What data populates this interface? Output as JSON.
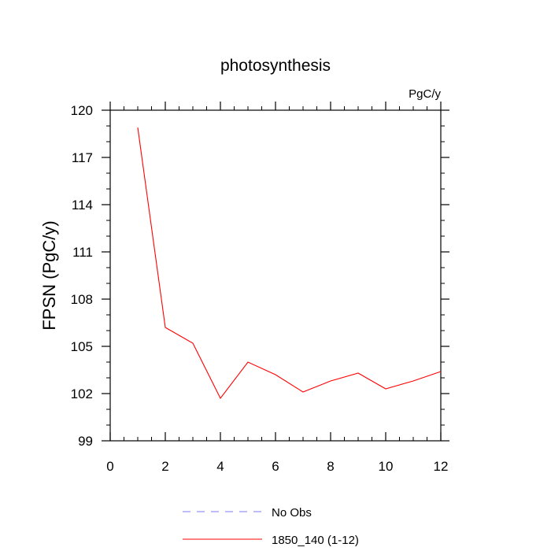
{
  "chart_data": {
    "type": "line",
    "title": "photosynthesis",
    "units_label": "PgC/y",
    "ylabel": "FPSN  (PgC/y)",
    "xlabel": "",
    "xlim": [
      0,
      12
    ],
    "ylim": [
      99,
      120
    ],
    "x_ticks": [
      0,
      2,
      4,
      6,
      8,
      10,
      12
    ],
    "y_ticks": [
      99,
      102,
      105,
      108,
      111,
      114,
      117,
      120
    ],
    "x_tick_labels": [
      "0",
      "2",
      "4",
      "6",
      "8",
      "10",
      "12"
    ],
    "y_tick_labels": [
      "99",
      "102",
      "105",
      "108",
      "111",
      "114",
      "117",
      "120"
    ],
    "grid": false,
    "legend_position": "bottom",
    "series": [
      {
        "name": "No Obs",
        "color": "#7b7bf0",
        "dash": "dashed",
        "x": [],
        "y": []
      },
      {
        "name": "1850_140 (1-12)",
        "color": "#ff0000",
        "dash": "solid",
        "x": [
          1,
          2,
          3,
          4,
          5,
          6,
          7,
          8,
          9,
          10,
          11,
          12
        ],
        "y": [
          118.9,
          106.2,
          105.2,
          101.7,
          104.0,
          103.2,
          102.1,
          102.8,
          103.3,
          102.3,
          102.8,
          103.4
        ]
      }
    ]
  }
}
